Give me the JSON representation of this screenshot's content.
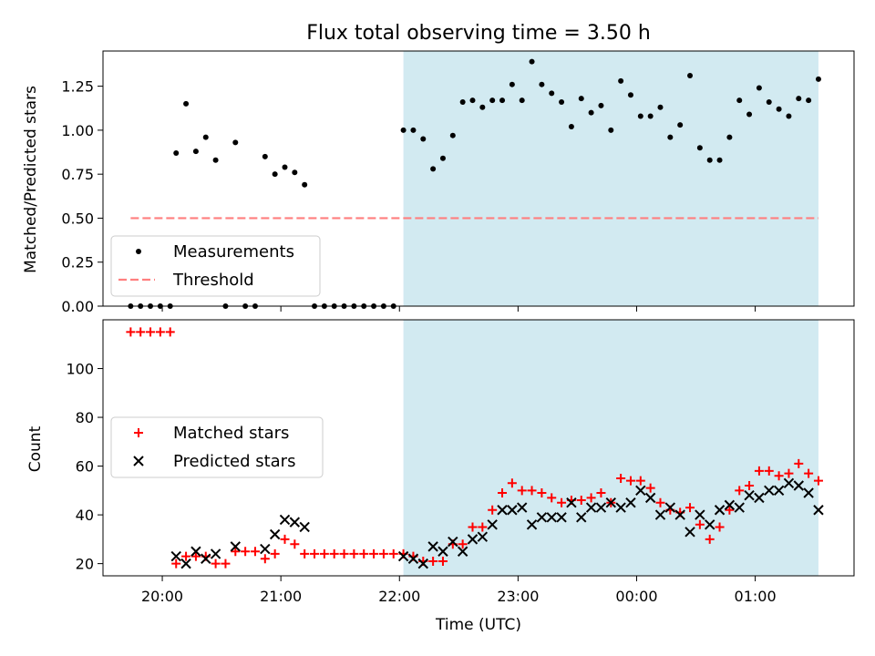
{
  "chart_data": [
    {
      "type": "scatter",
      "title": "Flux total observing time = 3.50 h",
      "ylabel": "Matched/Predicted stars",
      "xlabel": "",
      "xlim": [
        "19:30",
        "01:50"
      ],
      "ylim": [
        0,
        1.45
      ],
      "yticks": [
        "0.00",
        "0.25",
        "0.50",
        "0.75",
        "1.00",
        "1.25"
      ],
      "highlight_span": [
        "22:02",
        "01:32"
      ],
      "highlight_color": "#add8e6",
      "legend_position": "lower-left",
      "series": [
        {
          "name": "Measurements",
          "marker": "dot",
          "color": "#000000",
          "points": [
            [
              "19:44",
              0.0
            ],
            [
              "19:49",
              0.0
            ],
            [
              "19:54",
              0.0
            ],
            [
              "19:59",
              0.0
            ],
            [
              "20:04",
              0.0
            ],
            [
              "20:07",
              0.87
            ],
            [
              "20:12",
              1.15
            ],
            [
              "20:17",
              0.88
            ],
            [
              "20:22",
              0.96
            ],
            [
              "20:27",
              0.83
            ],
            [
              "20:32",
              0.0
            ],
            [
              "20:37",
              0.93
            ],
            [
              "20:42",
              0.0
            ],
            [
              "20:47",
              0.0
            ],
            [
              "20:52",
              0.85
            ],
            [
              "20:57",
              0.75
            ],
            [
              "21:02",
              0.79
            ],
            [
              "21:07",
              0.76
            ],
            [
              "21:12",
              0.69
            ],
            [
              "21:17",
              0.0
            ],
            [
              "21:22",
              0.0
            ],
            [
              "21:27",
              0.0
            ],
            [
              "21:32",
              0.0
            ],
            [
              "21:37",
              0.0
            ],
            [
              "21:42",
              0.0
            ],
            [
              "21:47",
              0.0
            ],
            [
              "21:52",
              0.0
            ],
            [
              "21:57",
              0.0
            ],
            [
              "22:02",
              1.0
            ],
            [
              "22:07",
              1.0
            ],
            [
              "22:12",
              0.95
            ],
            [
              "22:17",
              0.78
            ],
            [
              "22:22",
              0.84
            ],
            [
              "22:27",
              0.97
            ],
            [
              "22:32",
              1.16
            ],
            [
              "22:37",
              1.17
            ],
            [
              "22:42",
              1.13
            ],
            [
              "22:47",
              1.17
            ],
            [
              "22:52",
              1.17
            ],
            [
              "22:57",
              1.26
            ],
            [
              "23:02",
              1.17
            ],
            [
              "23:07",
              1.39
            ],
            [
              "23:12",
              1.26
            ],
            [
              "23:17",
              1.21
            ],
            [
              "23:22",
              1.16
            ],
            [
              "23:27",
              1.02
            ],
            [
              "23:32",
              1.18
            ],
            [
              "23:37",
              1.1
            ],
            [
              "23:42",
              1.14
            ],
            [
              "23:47",
              1.0
            ],
            [
              "23:52",
              1.28
            ],
            [
              "23:57",
              1.2
            ],
            [
              "00:02",
              1.08
            ],
            [
              "00:07",
              1.08
            ],
            [
              "00:12",
              1.13
            ],
            [
              "00:17",
              0.96
            ],
            [
              "00:22",
              1.03
            ],
            [
              "00:27",
              1.31
            ],
            [
              "00:32",
              0.9
            ],
            [
              "00:37",
              0.83
            ],
            [
              "00:42",
              0.83
            ],
            [
              "00:47",
              0.96
            ],
            [
              "00:52",
              1.17
            ],
            [
              "00:57",
              1.09
            ],
            [
              "01:02",
              1.24
            ],
            [
              "01:07",
              1.16
            ],
            [
              "01:12",
              1.12
            ],
            [
              "01:17",
              1.08
            ],
            [
              "01:22",
              1.18
            ],
            [
              "01:27",
              1.17
            ],
            [
              "01:32",
              1.29
            ]
          ]
        },
        {
          "name": "Threshold",
          "marker": "dashed-line",
          "color": "#ff7f7f",
          "points": [
            [
              "19:44",
              0.5
            ],
            [
              "01:32",
              0.5
            ]
          ]
        }
      ]
    },
    {
      "type": "scatter",
      "title": "",
      "ylabel": "Count",
      "xlabel": "Time (UTC)",
      "xlim": [
        "19:30",
        "01:50"
      ],
      "ylim": [
        15,
        120
      ],
      "yticks": [
        "20",
        "40",
        "60",
        "80",
        "100"
      ],
      "xticks": [
        "20:00",
        "21:00",
        "22:00",
        "23:00",
        "00:00",
        "01:00"
      ],
      "highlight_span": [
        "22:02",
        "01:32"
      ],
      "highlight_color": "#add8e6",
      "legend_position": "center-left",
      "series": [
        {
          "name": "Matched stars",
          "marker": "plus",
          "color": "#ff0000",
          "points": [
            [
              "19:44",
              115
            ],
            [
              "19:49",
              115
            ],
            [
              "19:54",
              115
            ],
            [
              "19:59",
              115
            ],
            [
              "20:04",
              115
            ],
            [
              "20:07",
              20
            ],
            [
              "20:12",
              23
            ],
            [
              "20:17",
              23
            ],
            [
              "20:22",
              23
            ],
            [
              "20:27",
              20
            ],
            [
              "20:32",
              20
            ],
            [
              "20:37",
              25
            ],
            [
              "20:42",
              25
            ],
            [
              "20:47",
              25
            ],
            [
              "20:52",
              22
            ],
            [
              "20:57",
              24
            ],
            [
              "21:02",
              30
            ],
            [
              "21:07",
              28
            ],
            [
              "21:12",
              24
            ],
            [
              "21:17",
              24
            ],
            [
              "21:22",
              24
            ],
            [
              "21:27",
              24
            ],
            [
              "21:32",
              24
            ],
            [
              "21:37",
              24
            ],
            [
              "21:42",
              24
            ],
            [
              "21:47",
              24
            ],
            [
              "21:52",
              24
            ],
            [
              "21:57",
              24
            ],
            [
              "22:02",
              24
            ],
            [
              "22:07",
              23
            ],
            [
              "22:12",
              21
            ],
            [
              "22:17",
              21
            ],
            [
              "22:22",
              21
            ],
            [
              "22:27",
              28
            ],
            [
              "22:32",
              28
            ],
            [
              "22:37",
              35
            ],
            [
              "22:42",
              35
            ],
            [
              "22:47",
              42
            ],
            [
              "22:52",
              49
            ],
            [
              "22:57",
              53
            ],
            [
              "23:02",
              50
            ],
            [
              "23:07",
              50
            ],
            [
              "23:12",
              49
            ],
            [
              "23:17",
              47
            ],
            [
              "23:22",
              45
            ],
            [
              "23:27",
              46
            ],
            [
              "23:32",
              46
            ],
            [
              "23:37",
              47
            ],
            [
              "23:42",
              49
            ],
            [
              "23:47",
              45
            ],
            [
              "23:52",
              55
            ],
            [
              "23:57",
              54
            ],
            [
              "00:02",
              54
            ],
            [
              "00:07",
              51
            ],
            [
              "00:12",
              45
            ],
            [
              "00:17",
              42
            ],
            [
              "00:22",
              41
            ],
            [
              "00:27",
              43
            ],
            [
              "00:32",
              36
            ],
            [
              "00:37",
              30
            ],
            [
              "00:42",
              35
            ],
            [
              "00:47",
              42
            ],
            [
              "00:52",
              50
            ],
            [
              "00:57",
              52
            ],
            [
              "01:02",
              58
            ],
            [
              "01:07",
              58
            ],
            [
              "01:12",
              56
            ],
            [
              "01:17",
              57
            ],
            [
              "01:22",
              61
            ],
            [
              "01:27",
              57
            ],
            [
              "01:32",
              54
            ]
          ]
        },
        {
          "name": "Predicted stars",
          "marker": "x",
          "color": "#000000",
          "points": [
            [
              "20:07",
              23
            ],
            [
              "20:12",
              20
            ],
            [
              "20:17",
              25
            ],
            [
              "20:22",
              22
            ],
            [
              "20:27",
              24
            ],
            [
              "20:37",
              27
            ],
            [
              "20:52",
              26
            ],
            [
              "20:57",
              32
            ],
            [
              "21:02",
              38
            ],
            [
              "21:07",
              37
            ],
            [
              "21:12",
              35
            ],
            [
              "22:02",
              23
            ],
            [
              "22:07",
              22
            ],
            [
              "22:12",
              20
            ],
            [
              "22:17",
              27
            ],
            [
              "22:22",
              25
            ],
            [
              "22:27",
              29
            ],
            [
              "22:32",
              25
            ],
            [
              "22:37",
              30
            ],
            [
              "22:42",
              31
            ],
            [
              "22:47",
              36
            ],
            [
              "22:52",
              42
            ],
            [
              "22:57",
              42
            ],
            [
              "23:02",
              43
            ],
            [
              "23:07",
              36
            ],
            [
              "23:12",
              39
            ],
            [
              "23:17",
              39
            ],
            [
              "23:22",
              39
            ],
            [
              "23:27",
              45
            ],
            [
              "23:32",
              39
            ],
            [
              "23:37",
              43
            ],
            [
              "23:42",
              43
            ],
            [
              "23:47",
              45
            ],
            [
              "23:52",
              43
            ],
            [
              "23:57",
              45
            ],
            [
              "00:02",
              50
            ],
            [
              "00:07",
              47
            ],
            [
              "00:12",
              40
            ],
            [
              "00:17",
              43
            ],
            [
              "00:22",
              40
            ],
            [
              "00:27",
              33
            ],
            [
              "00:32",
              40
            ],
            [
              "00:37",
              36
            ],
            [
              "00:42",
              42
            ],
            [
              "00:47",
              44
            ],
            [
              "00:52",
              43
            ],
            [
              "00:57",
              48
            ],
            [
              "01:02",
              47
            ],
            [
              "01:07",
              50
            ],
            [
              "01:12",
              50
            ],
            [
              "01:17",
              53
            ],
            [
              "01:22",
              52
            ],
            [
              "01:27",
              49
            ],
            [
              "01:32",
              42
            ]
          ]
        }
      ]
    }
  ]
}
